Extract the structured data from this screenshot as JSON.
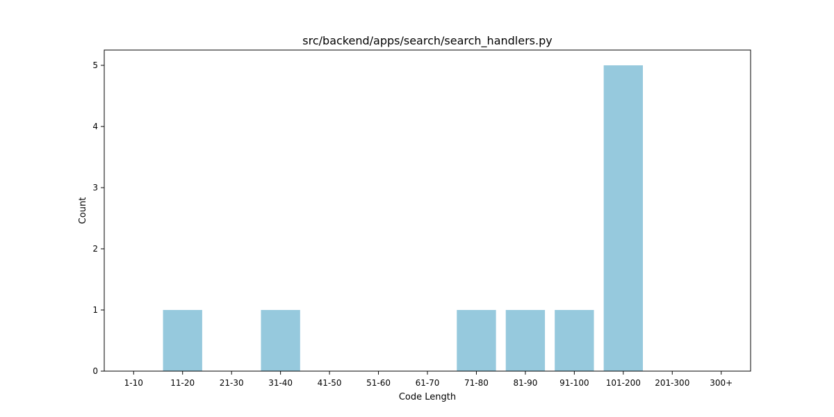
{
  "chart_data": {
    "type": "bar",
    "title": "src/backend/apps/search/search_handlers.py",
    "xlabel": "Code Length",
    "ylabel": "Count",
    "categories": [
      "1-10",
      "11-20",
      "21-30",
      "31-40",
      "41-50",
      "51-60",
      "61-70",
      "71-80",
      "81-90",
      "91-100",
      "101-200",
      "201-300",
      "300+"
    ],
    "values": [
      0,
      1,
      0,
      1,
      0,
      0,
      0,
      1,
      1,
      1,
      5,
      0,
      0
    ],
    "yticks": [
      0,
      1,
      2,
      3,
      4,
      5
    ],
    "ylim": [
      0,
      5.25
    ],
    "bar_color": "#96c9dd",
    "grid": false,
    "legend": "none"
  }
}
